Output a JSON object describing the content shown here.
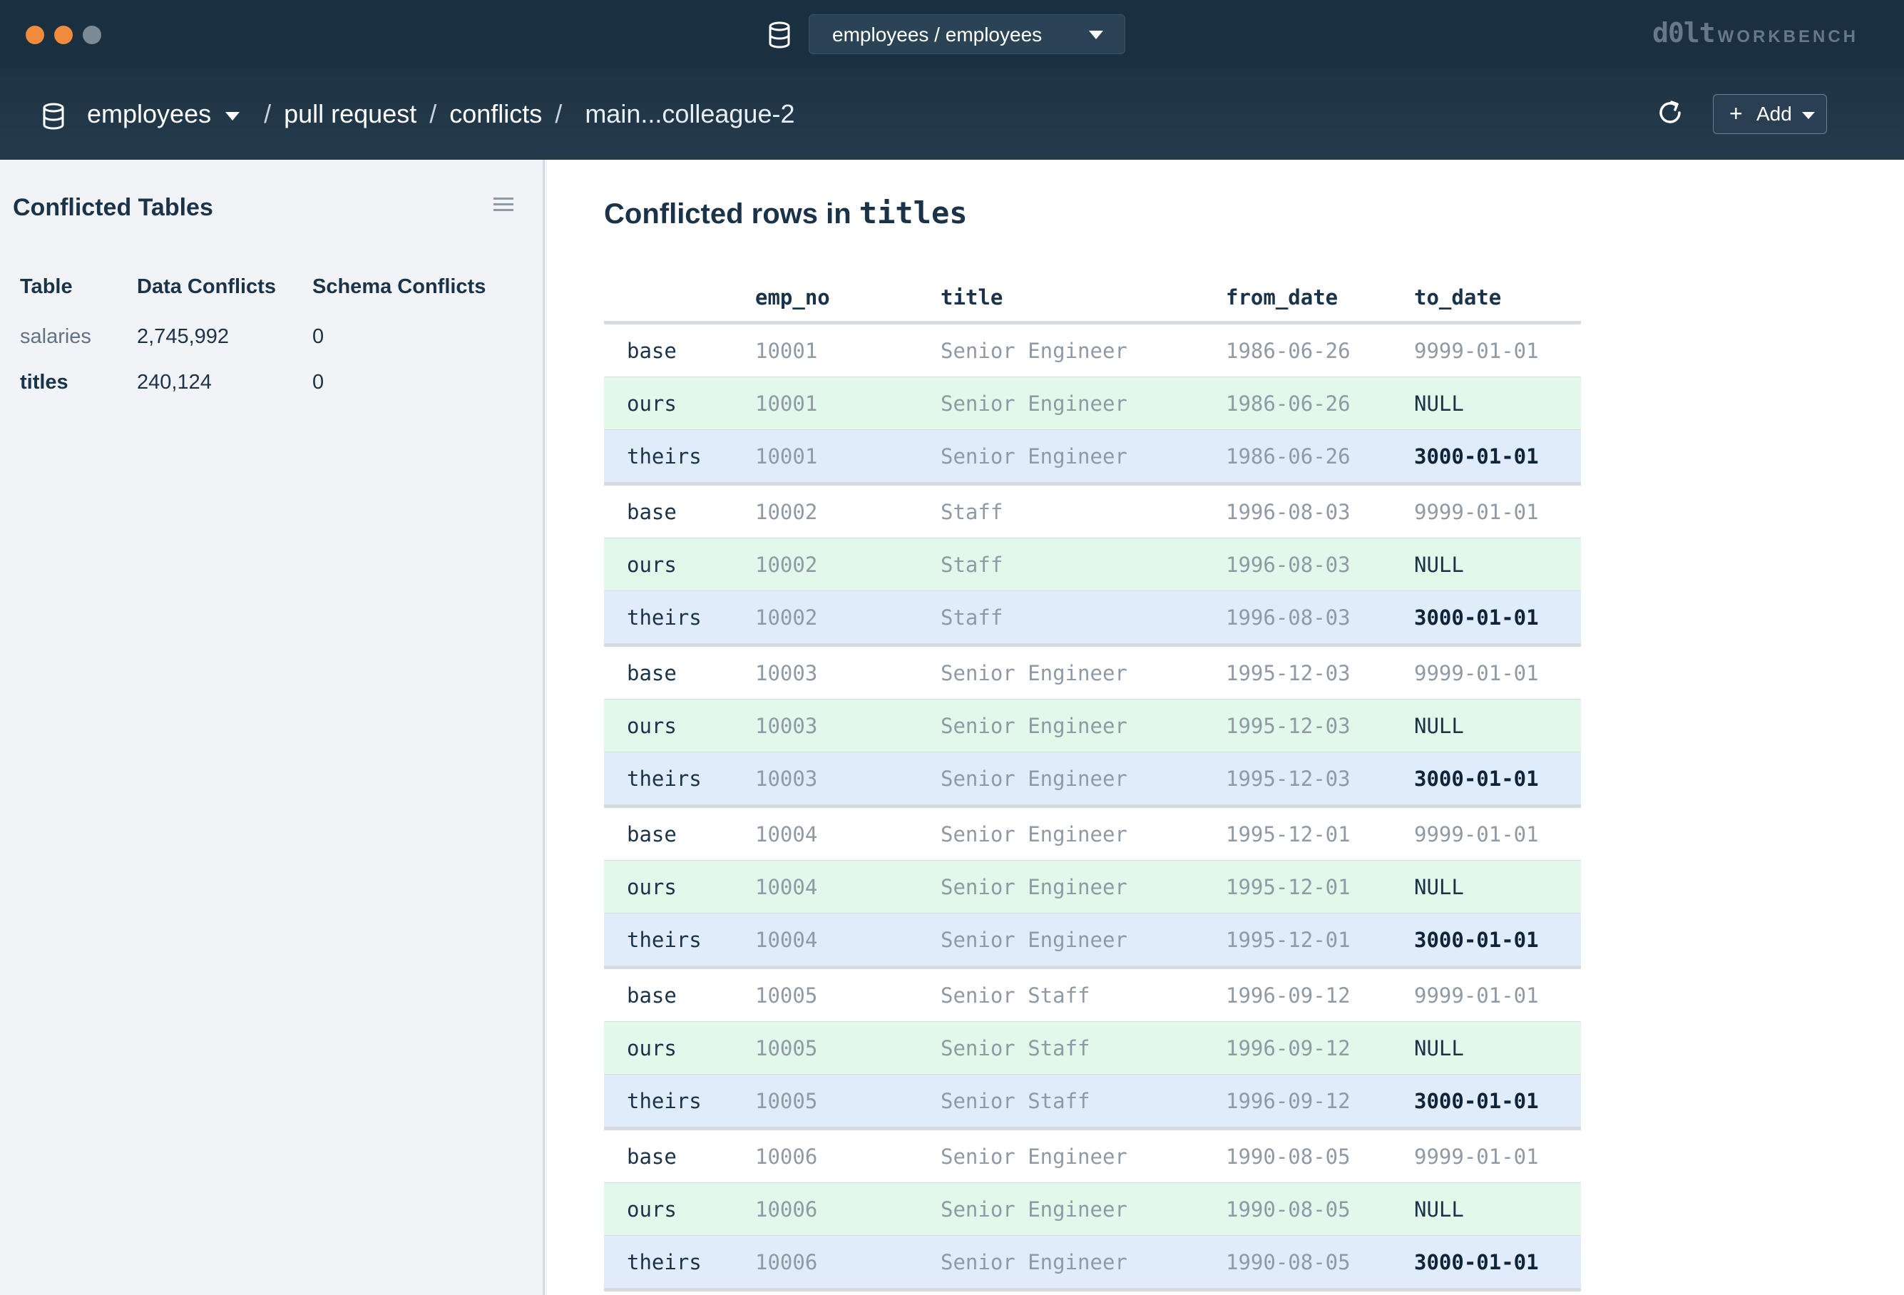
{
  "window": {
    "db_selector": "employees / employees",
    "brand_main": "d0lt",
    "brand_sub": "WORKBENCH"
  },
  "nav": {
    "database": "employees",
    "crumb_1": "pull request",
    "crumb_2": "conflicts",
    "branch": "main...colleague-2",
    "add_label": "Add"
  },
  "sidebar": {
    "title": "Conflicted Tables",
    "columns": [
      "Table",
      "Data Conflicts",
      "Schema Conflicts"
    ],
    "tables": [
      {
        "name": "salaries",
        "data_conflicts": "2,745,992",
        "schema_conflicts": "0"
      },
      {
        "name": "titles",
        "data_conflicts": "240,124",
        "schema_conflicts": "0"
      }
    ]
  },
  "main": {
    "title_prefix": "Conflicted rows in ",
    "title_table": "titles",
    "columns": [
      "",
      "emp_no",
      "title",
      "from_date",
      "to_date"
    ],
    "rows": [
      [
        "base",
        "10001",
        "Senior Engineer",
        "1986-06-26",
        "9999-01-01"
      ],
      [
        "ours",
        "10001",
        "Senior Engineer",
        "1986-06-26",
        "NULL"
      ],
      [
        "theirs",
        "10001",
        "Senior Engineer",
        "1986-06-26",
        "3000-01-01"
      ],
      [
        "base",
        "10002",
        "Staff",
        "1996-08-03",
        "9999-01-01"
      ],
      [
        "ours",
        "10002",
        "Staff",
        "1996-08-03",
        "NULL"
      ],
      [
        "theirs",
        "10002",
        "Staff",
        "1996-08-03",
        "3000-01-01"
      ],
      [
        "base",
        "10003",
        "Senior Engineer",
        "1995-12-03",
        "9999-01-01"
      ],
      [
        "ours",
        "10003",
        "Senior Engineer",
        "1995-12-03",
        "NULL"
      ],
      [
        "theirs",
        "10003",
        "Senior Engineer",
        "1995-12-03",
        "3000-01-01"
      ],
      [
        "base",
        "10004",
        "Senior Engineer",
        "1995-12-01",
        "9999-01-01"
      ],
      [
        "ours",
        "10004",
        "Senior Engineer",
        "1995-12-01",
        "NULL"
      ],
      [
        "theirs",
        "10004",
        "Senior Engineer",
        "1995-12-01",
        "3000-01-01"
      ],
      [
        "base",
        "10005",
        "Senior Staff",
        "1996-09-12",
        "9999-01-01"
      ],
      [
        "ours",
        "10005",
        "Senior Staff",
        "1996-09-12",
        "NULL"
      ],
      [
        "theirs",
        "10005",
        "Senior Staff",
        "1996-09-12",
        "3000-01-01"
      ],
      [
        "base",
        "10006",
        "Senior Engineer",
        "1990-08-05",
        "9999-01-01"
      ],
      [
        "ours",
        "10006",
        "Senior Engineer",
        "1990-08-05",
        "NULL"
      ],
      [
        "theirs",
        "10006",
        "Senior Engineer",
        "1990-08-05",
        "3000-01-01"
      ]
    ]
  },
  "colors": {
    "titlebar": "#1a2f40",
    "ours_row": "#e1f8ea",
    "theirs_row": "#e0ecfa",
    "traffic_light": "#f08a3c"
  }
}
